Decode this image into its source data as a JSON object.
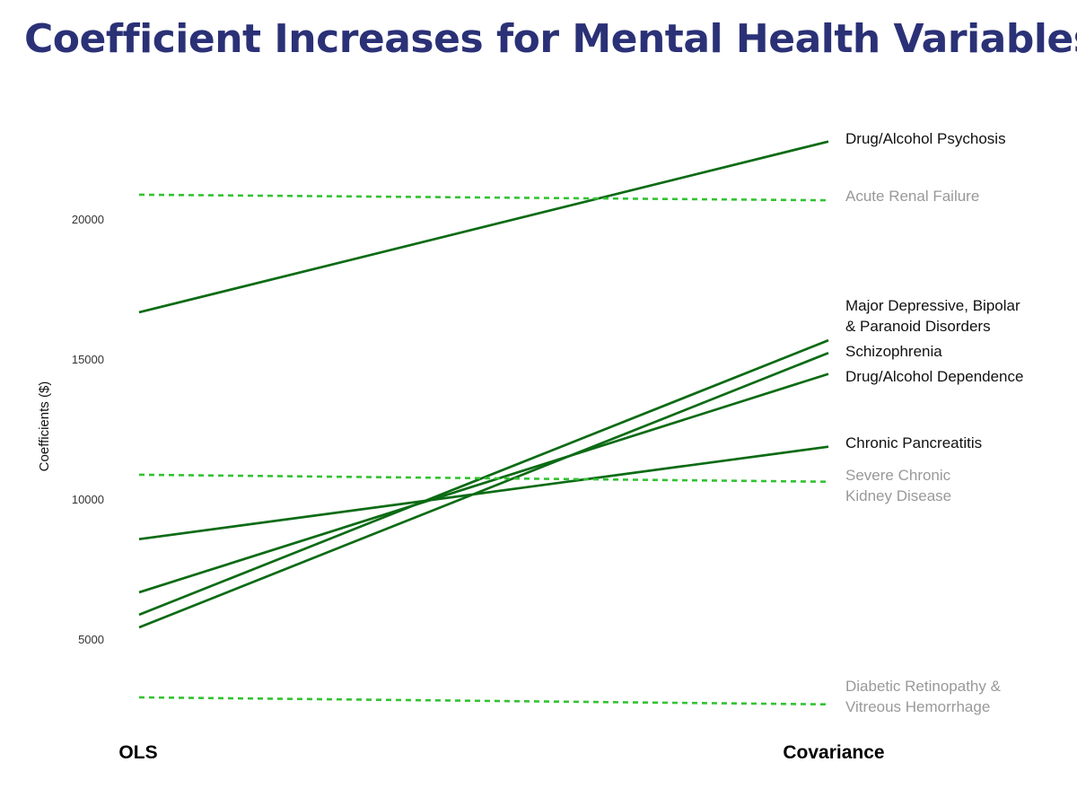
{
  "page": {
    "title": "Coefficient Increases for Mental Health Variables"
  },
  "chart_data": {
    "type": "line",
    "title": "Coefficient Increases for Mental Health Variables",
    "xlabel": "",
    "ylabel": "Coefficients ($)",
    "categories": [
      "OLS",
      "Covariance"
    ],
    "ylim": [
      2500,
      24000
    ],
    "yticks": [
      5000,
      10000,
      15000,
      20000
    ],
    "grid": false,
    "legend": "direct labels at right",
    "colors": {
      "mental_health": "#0b6b14",
      "comparison": "#33c233",
      "label_mental_health": "#111111",
      "label_comparison": "#999999"
    },
    "series": [
      {
        "name": "Drug/Alcohol Psychosis",
        "label_lines": [
          "Drug/Alcohol Psychosis"
        ],
        "group": "mental_health",
        "style": "solid",
        "values": [
          16700,
          22800
        ]
      },
      {
        "name": "Acute Renal Failure",
        "label_lines": [
          "Acute Renal Failure"
        ],
        "group": "comparison",
        "style": "dashed",
        "values": [
          20900,
          20700
        ]
      },
      {
        "name": "Major Depressive, Bipolar & Paranoid Disorders",
        "label_lines": [
          "Major Depressive, Bipolar",
          "& Paranoid Disorders"
        ],
        "group": "mental_health",
        "style": "solid",
        "values": [
          5900,
          15700
        ]
      },
      {
        "name": "Schizophrenia",
        "label_lines": [
          "Schizophrenia"
        ],
        "group": "mental_health",
        "style": "solid",
        "values": [
          5450,
          15250
        ]
      },
      {
        "name": "Drug/Alcohol Dependence",
        "label_lines": [
          "Drug/Alcohol Dependence"
        ],
        "group": "mental_health",
        "style": "solid",
        "values": [
          6700,
          14500
        ]
      },
      {
        "name": "Chronic Pancreatitis",
        "label_lines": [
          "Chronic Pancreatitis"
        ],
        "group": "mental_health",
        "style": "solid",
        "values": [
          8600,
          11900
        ]
      },
      {
        "name": "Severe Chronic Kidney Disease",
        "label_lines": [
          "Severe Chronic",
          "Kidney Disease"
        ],
        "group": "comparison",
        "style": "dashed",
        "values": [
          10900,
          10650
        ]
      },
      {
        "name": "Diabetic Retinopathy & Vitreous Hemorrhage",
        "label_lines": [
          "Diabetic Retinopathy &",
          "Vitreous Hemorrhage"
        ],
        "group": "comparison",
        "style": "dashed",
        "values": [
          2950,
          2700
        ]
      }
    ]
  }
}
